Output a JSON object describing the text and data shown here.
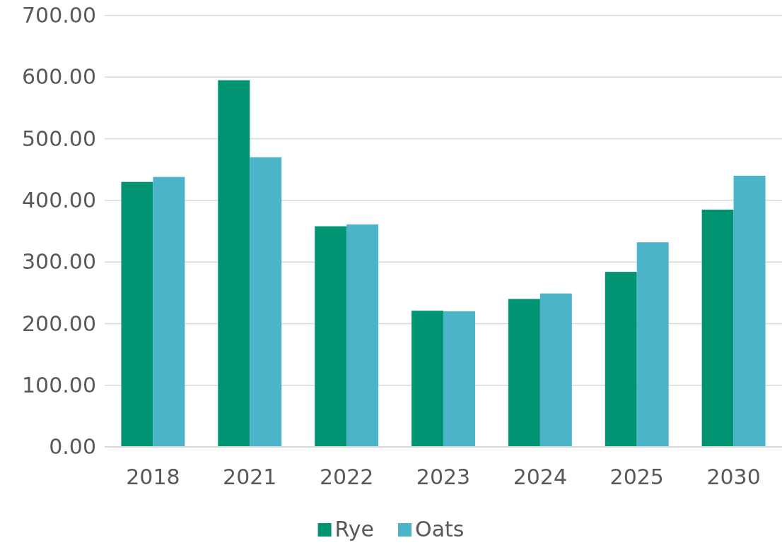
{
  "chart_data": {
    "type": "bar",
    "categories": [
      "2018",
      "2021",
      "2022",
      "2023",
      "2024",
      "2025",
      "2030"
    ],
    "series": [
      {
        "name": "Rye",
        "color": "#009473",
        "values": [
          430,
          595,
          358,
          221,
          240,
          284,
          385
        ]
      },
      {
        "name": "Oats",
        "color": "#4bb4c8",
        "values": [
          438,
          470,
          361,
          220,
          249,
          332,
          440
        ]
      }
    ],
    "ylim": [
      0,
      700
    ],
    "yticks": [
      {
        "value": 0,
        "label": "0.00"
      },
      {
        "value": 100,
        "label": "100.00"
      },
      {
        "value": 200,
        "label": "200.00"
      },
      {
        "value": 300,
        "label": "300.00"
      },
      {
        "value": 400,
        "label": "400.00"
      },
      {
        "value": 500,
        "label": "500.00"
      },
      {
        "value": 600,
        "label": "600.00"
      },
      {
        "value": 700,
        "label": "700.00"
      }
    ],
    "grid": "y",
    "legend": "bottom"
  }
}
